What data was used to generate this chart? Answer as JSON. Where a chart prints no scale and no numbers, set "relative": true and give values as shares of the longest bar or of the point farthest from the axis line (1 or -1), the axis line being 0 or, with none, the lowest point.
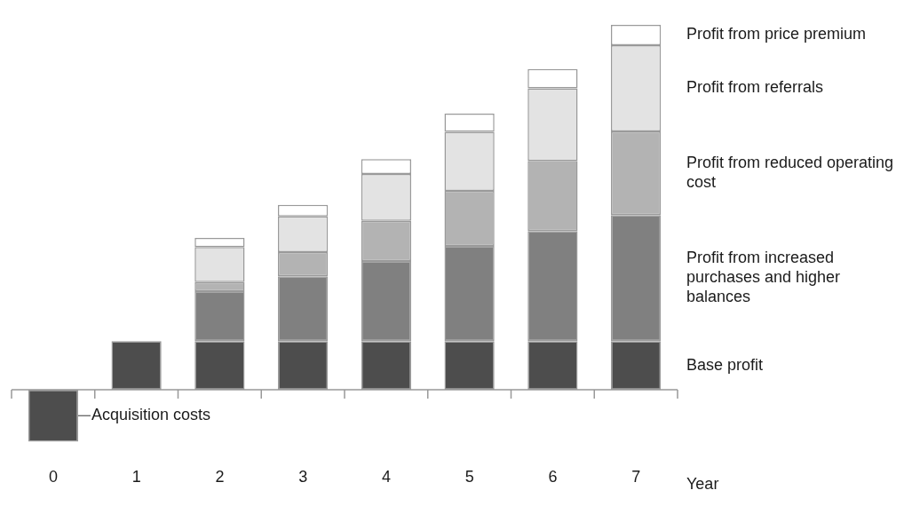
{
  "chart_data": {
    "type": "bar",
    "stacked": true,
    "relative": true,
    "xlabel": "Year",
    "legend": false,
    "grid": false,
    "categories": [
      "0",
      "1",
      "2",
      "3",
      "4",
      "5",
      "6",
      "7"
    ],
    "series": [
      {
        "name": "Acquisition costs",
        "color": "#4d4d4d",
        "values": [
          -0.142,
          null,
          null,
          null,
          null,
          null,
          null,
          null
        ]
      },
      {
        "name": "Base profit",
        "color": "#4d4d4d",
        "values": [
          null,
          0.133,
          0.133,
          0.133,
          0.133,
          0.133,
          0.133,
          0.133
        ]
      },
      {
        "name": "Profit from increased purchases and higher balances",
        "color": "#808080",
        "values": [
          null,
          null,
          0.137,
          0.178,
          0.22,
          0.261,
          0.302,
          0.346
        ]
      },
      {
        "name": "Profit from reduced operating cost",
        "color": "#b3b3b3",
        "values": [
          null,
          null,
          0.025,
          0.066,
          0.11,
          0.151,
          0.192,
          0.229
        ]
      },
      {
        "name": "Profit from referrals",
        "color": "#e3e3e3",
        "values": [
          null,
          null,
          0.096,
          0.098,
          0.128,
          0.162,
          0.199,
          0.236
        ]
      },
      {
        "name": "Profit from price premium",
        "color": "#ffffff",
        "values": [
          null,
          null,
          0.025,
          0.032,
          0.041,
          0.05,
          0.053,
          0.056
        ]
      }
    ]
  }
}
